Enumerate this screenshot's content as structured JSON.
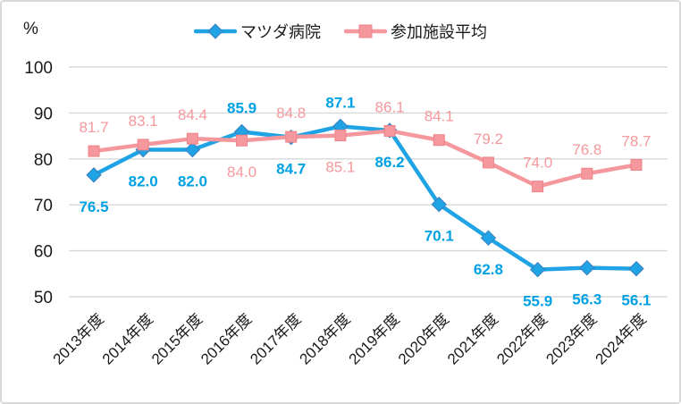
{
  "chart": {
    "unit_label": "%",
    "grid_color": "#d9d9d9",
    "border_color": "#d9d9d9",
    "axis_text_color": "#1a1a1a"
  },
  "chart_data": {
    "type": "line",
    "title": "",
    "xlabel": "",
    "ylabel": "%",
    "ylim": [
      50,
      100
    ],
    "ytick_step": 10,
    "grid": true,
    "legend_position": "top",
    "categories": [
      "2013年度",
      "2014年度",
      "2015年度",
      "2016年度",
      "2017年度",
      "2018年度",
      "2019年度",
      "2020年度",
      "2021年度",
      "2022年度",
      "2023年度",
      "2024年度"
    ],
    "series": [
      {
        "name": "マツダ病院",
        "marker": "diamond",
        "color": "#1fa3e4",
        "marker_stroke": "#3c7ebf",
        "label_color": "#00a1e4",
        "bold_labels": true,
        "values": [
          76.5,
          82.0,
          82.0,
          85.9,
          84.7,
          87.1,
          86.2,
          70.1,
          62.8,
          55.9,
          56.3,
          56.1
        ],
        "label_positions": [
          "below",
          "below",
          "below",
          "above",
          "below",
          "above",
          "below",
          "below",
          "below",
          "below",
          "below",
          "below"
        ]
      },
      {
        "name": "参加施設平均",
        "marker": "square",
        "color": "#f5989d",
        "marker_stroke": "#f08389",
        "label_color": "#f5989d",
        "bold_labels": false,
        "values": [
          81.7,
          83.1,
          84.4,
          84.0,
          84.8,
          85.1,
          86.1,
          84.1,
          79.2,
          74.0,
          76.8,
          78.7
        ],
        "label_positions": [
          "above",
          "above",
          "above",
          "below",
          "above",
          "below",
          "above",
          "above",
          "above",
          "above",
          "above",
          "above"
        ]
      }
    ]
  }
}
